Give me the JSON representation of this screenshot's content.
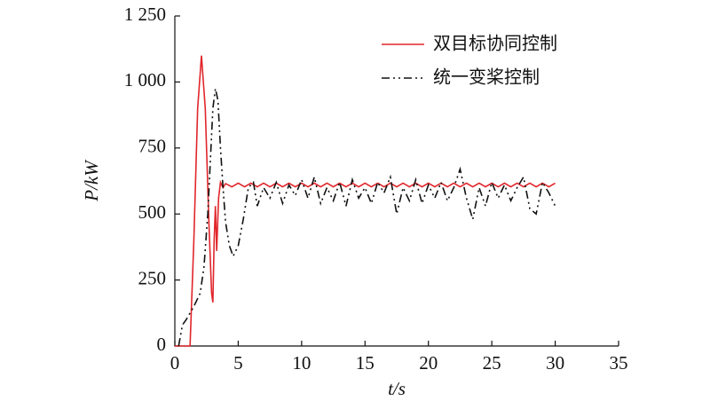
{
  "chart_data": {
    "type": "line",
    "xlabel": "t/s",
    "ylabel": "P/kW",
    "xlim": [
      0,
      35
    ],
    "xticks": [
      0,
      5,
      10,
      15,
      20,
      25,
      30,
      35
    ],
    "ylim": [
      0,
      1250
    ],
    "yticks": [
      0,
      250,
      500,
      750,
      {
        "value": 1000,
        "label": "1 000"
      },
      {
        "value": 1250,
        "label": "1 250"
      }
    ],
    "legend": "upper right",
    "series": [
      {
        "name": "双目标协同控制",
        "color": "#e0262b",
        "linestyle": "solid",
        "x": [
          0,
          1.2,
          1.5,
          1.8,
          2.1,
          2.4,
          2.7,
          2.9,
          3.0,
          3.1,
          3.2,
          3.3,
          3.45,
          3.6,
          3.8,
          4.0,
          4.5,
          5,
          5.5,
          6,
          6.5,
          7,
          7.5,
          8,
          8.5,
          9,
          9.5,
          10,
          10.5,
          11,
          11.5,
          12,
          12.5,
          13,
          13.5,
          14,
          14.5,
          15,
          15.5,
          16,
          16.5,
          17,
          17.5,
          18,
          18.5,
          19,
          19.5,
          20,
          20.5,
          21,
          21.5,
          22,
          22.5,
          23,
          23.5,
          24,
          24.5,
          25,
          25.5,
          26,
          26.5,
          27,
          27.5,
          28,
          28.5,
          29,
          29.5,
          30
        ],
        "values": [
          0,
          0,
          400,
          900,
          1100,
          900,
          450,
          200,
          165,
          400,
          530,
          360,
          560,
          620,
          600,
          615,
          603,
          617,
          603,
          617,
          603,
          617,
          603,
          617,
          603,
          617,
          603,
          617,
          603,
          617,
          603,
          617,
          603,
          617,
          603,
          617,
          603,
          617,
          603,
          617,
          603,
          617,
          603,
          617,
          603,
          617,
          603,
          617,
          603,
          617,
          603,
          617,
          603,
          617,
          603,
          617,
          603,
          617,
          603,
          617,
          603,
          617,
          603,
          617,
          603,
          617,
          603,
          617
        ]
      },
      {
        "name": "统一变桨控制",
        "color": "#111111",
        "linestyle": "dashdot",
        "x": [
          0.3,
          0.6,
          0.9,
          1.5,
          2.0,
          2.3,
          2.6,
          2.8,
          3.0,
          3.2,
          3.4,
          3.6,
          3.8,
          4.0,
          4.3,
          4.6,
          5.0,
          5.4,
          5.8,
          6.2,
          6.5,
          7,
          7.5,
          8,
          8.5,
          9,
          9.5,
          10,
          10.5,
          11,
          11.5,
          12,
          12.5,
          13,
          13.5,
          14,
          14.5,
          15,
          15.5,
          16,
          16.5,
          17,
          17.5,
          18,
          18.5,
          19,
          19.5,
          20,
          20.5,
          21,
          21.5,
          22,
          22.5,
          23,
          23.5,
          24,
          24.5,
          25,
          25.5,
          26,
          26.5,
          27,
          27.5,
          28,
          28.5,
          29,
          29.5,
          30
        ],
        "values": [
          0,
          80,
          100,
          150,
          200,
          300,
          500,
          700,
          900,
          975,
          930,
          750,
          600,
          470,
          380,
          340,
          380,
          480,
          600,
          620,
          530,
          600,
          560,
          620,
          540,
          610,
          570,
          630,
          560,
          640,
          540,
          600,
          550,
          620,
          530,
          630,
          560,
          600,
          540,
          620,
          580,
          640,
          500,
          600,
          550,
          630,
          540,
          610,
          560,
          620,
          550,
          600,
          670,
          560,
          480,
          600,
          530,
          620,
          560,
          610,
          550,
          600,
          640,
          520,
          500,
          620,
          580,
          530
        ]
      }
    ]
  }
}
